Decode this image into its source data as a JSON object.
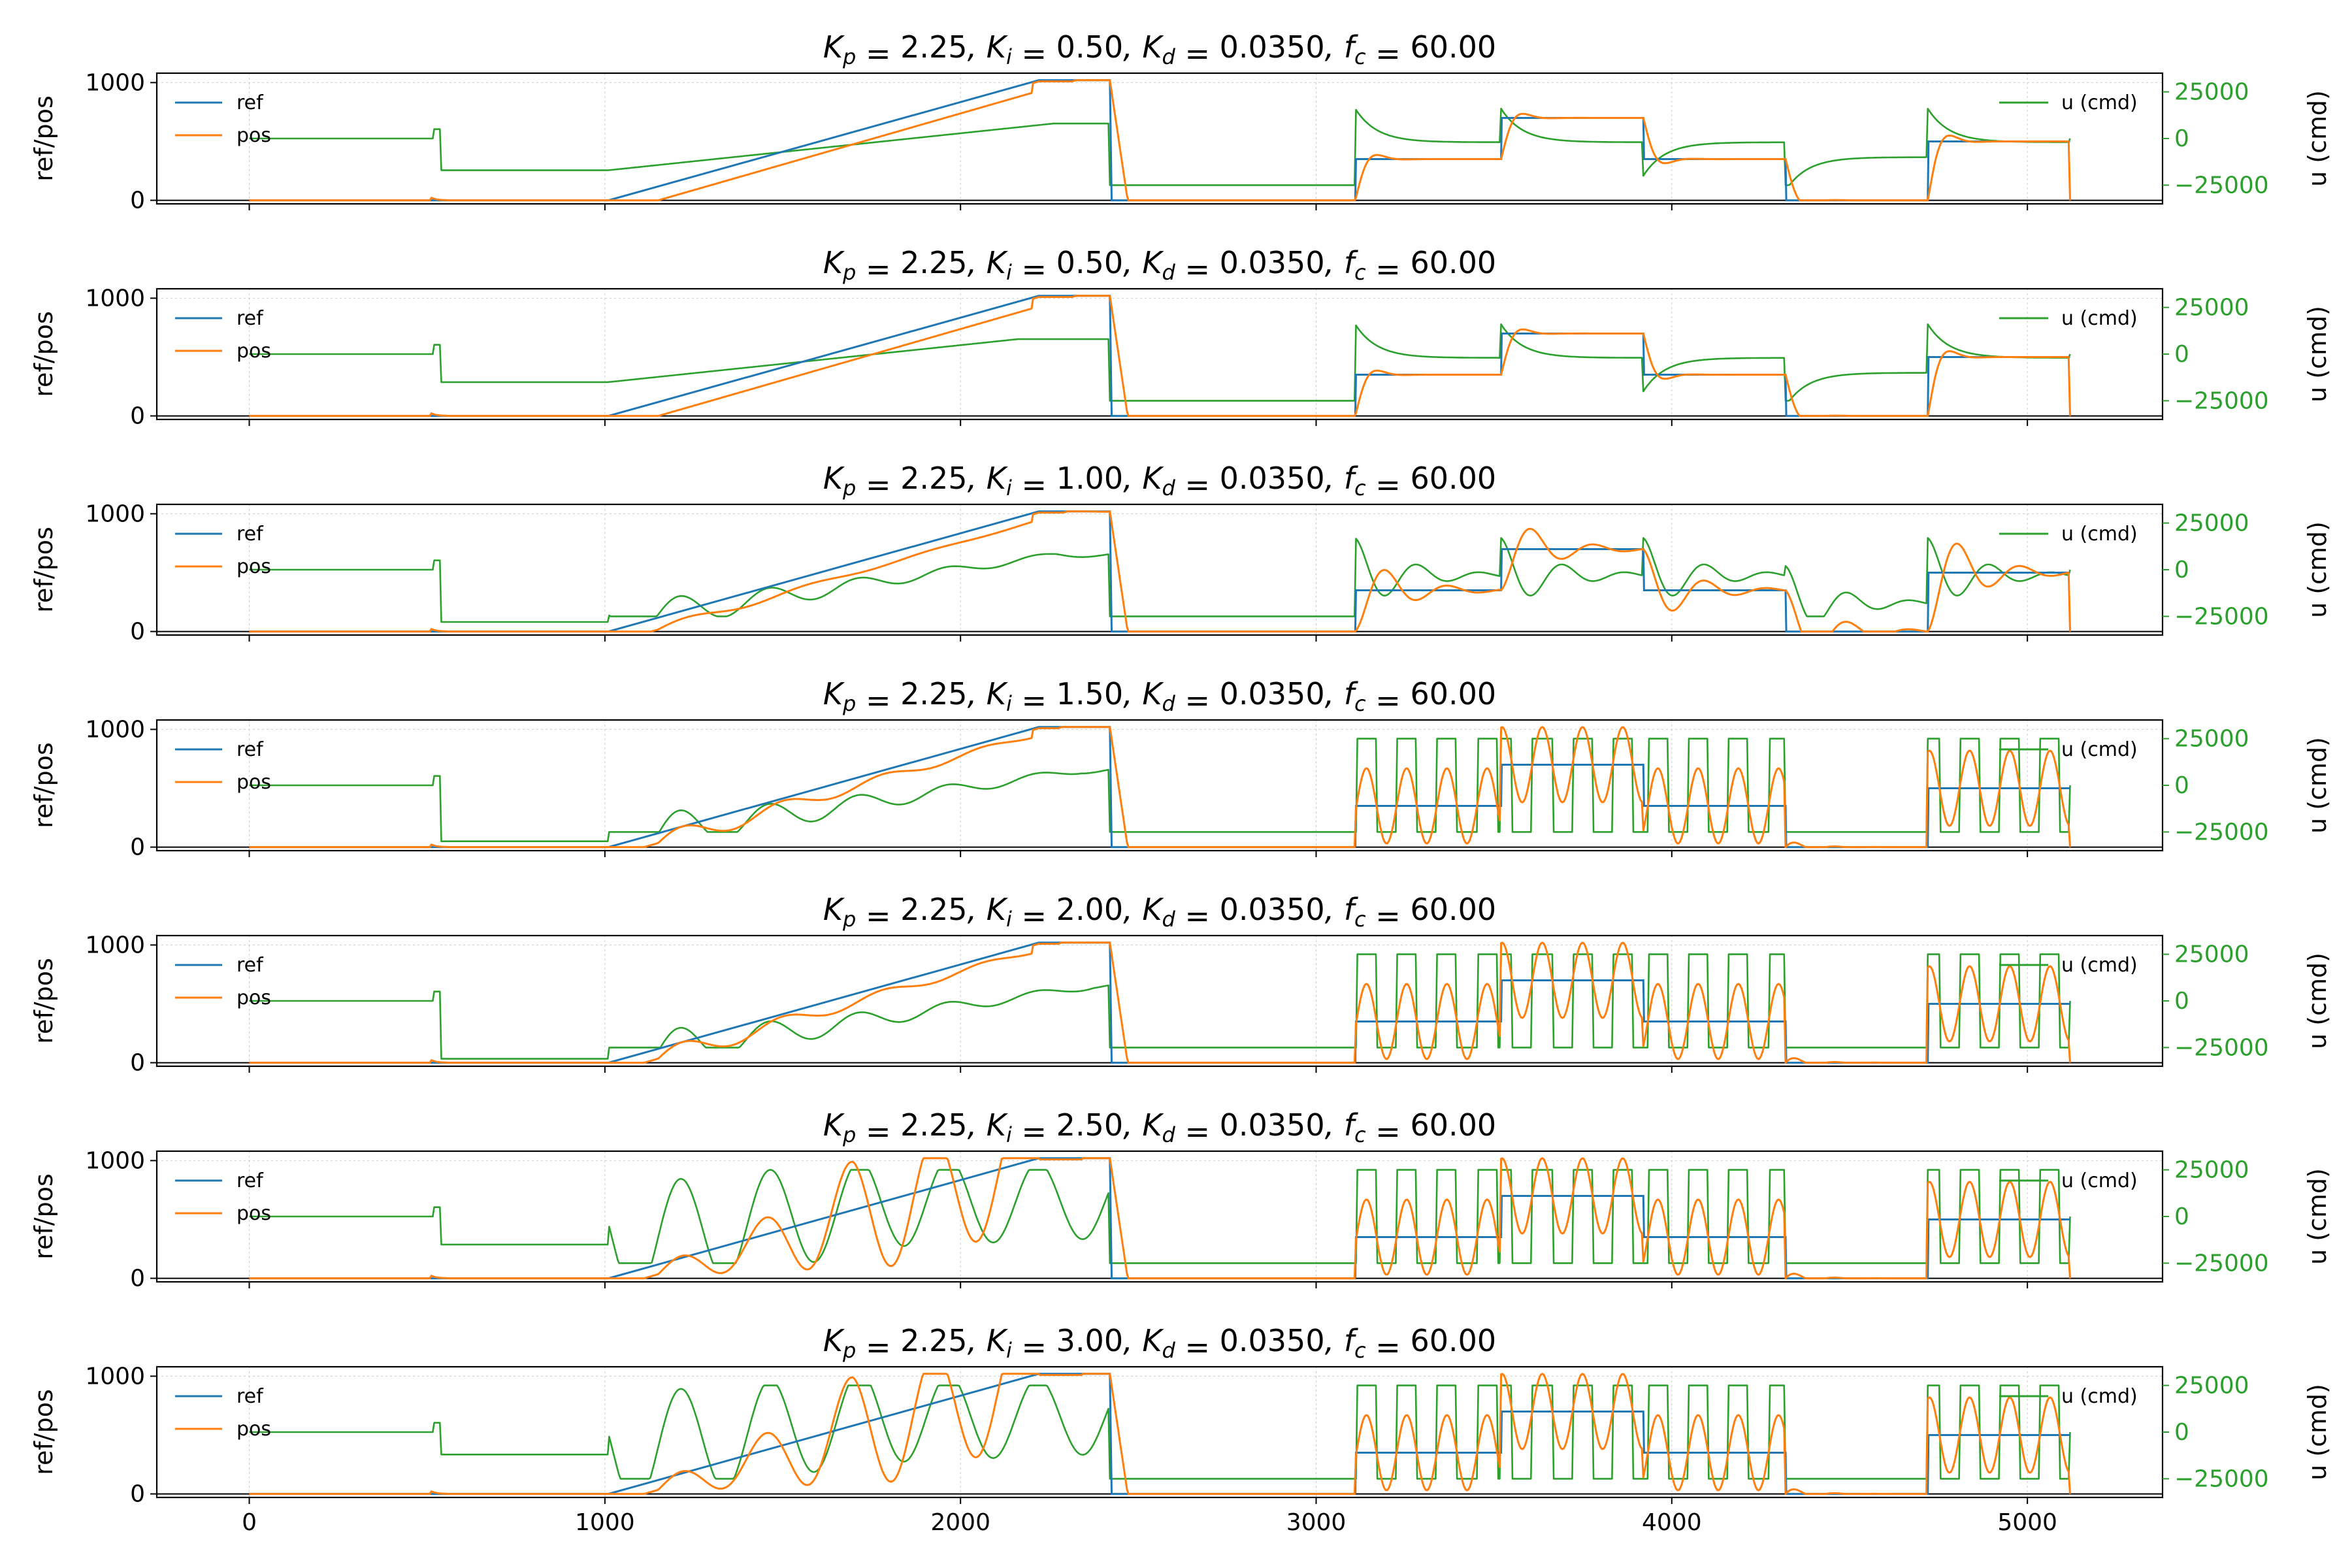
{
  "colors": {
    "ref": "#1f77b4",
    "pos": "#ff7f0e",
    "u": "#2ca02c",
    "grid": "#cccccc",
    "axis": "#000000"
  },
  "chart_data": {
    "type": "line",
    "xlim": [
      -260,
      5380
    ],
    "x_ticks": [
      0,
      1000,
      2000,
      3000,
      4000,
      5000
    ],
    "x_tick_labels": [
      "0",
      "1000",
      "2000",
      "3000",
      "4000",
      "5000"
    ],
    "ylim_left": [
      -30,
      1080
    ],
    "y_left_ticks": [
      0,
      1000
    ],
    "y_left_tick_labels": [
      "0",
      "1000"
    ],
    "ylim_right": [
      -35000,
      35000
    ],
    "y_right_ticks": [
      -25000,
      0,
      25000
    ],
    "y_right_tick_labels": [
      "−25000",
      "0",
      "25000"
    ],
    "ylabel_left": "ref/pos",
    "ylabel_right": "u (cmd)",
    "legend_left": [
      "ref",
      "pos"
    ],
    "legend_right": [
      "u (cmd)"
    ],
    "grid": true,
    "reference": {
      "x": [
        0,
        1010,
        2220,
        2420,
        2425,
        3110,
        3112,
        3520,
        3522,
        3920,
        3922,
        4320,
        4322,
        4720,
        4722,
        5120
      ],
      "y": [
        0,
        0,
        1020,
        1020,
        0,
        0,
        350,
        350,
        700,
        700,
        350,
        350,
        0,
        0,
        500,
        500
      ]
    },
    "panels": [
      {
        "title": "K_p = 2.25, K_i = 0.50, K_d = 0.0350, f_c = 60.00",
        "Kp": "2.25",
        "Ki": "0.50",
        "Kd": "0.0350",
        "fc": "60.00",
        "behavior": "stable",
        "u_idle": -17000
      },
      {
        "title": "K_p = 2.25, K_i = 0.50, K_d = 0.0350, f_c = 60.00",
        "Kp": "2.25",
        "Ki": "0.50",
        "Kd": "0.0350",
        "fc": "60.00",
        "behavior": "stable",
        "u_idle": -15000
      },
      {
        "title": "K_p = 2.25, K_i = 1.00, K_d = 0.0350, f_c = 60.00",
        "Kp": "2.25",
        "Ki": "1.00",
        "Kd": "0.0350",
        "fc": "60.00",
        "behavior": "damped",
        "u_idle": -28000
      },
      {
        "title": "K_p = 2.25, K_i = 1.50, K_d = 0.0350, f_c = 60.00",
        "Kp": "2.25",
        "Ki": "1.50",
        "Kd": "0.0350",
        "fc": "60.00",
        "behavior": "oscillating",
        "u_idle": -30000
      },
      {
        "title": "K_p = 2.25, K_i = 2.00, K_d = 0.0350, f_c = 60.00",
        "Kp": "2.25",
        "Ki": "2.00",
        "Kd": "0.0350",
        "fc": "60.00",
        "behavior": "oscillating",
        "u_idle": -31000
      },
      {
        "title": "K_p = 2.25, K_i = 2.50, K_d = 0.0350, f_c = 60.00",
        "Kp": "2.25",
        "Ki": "2.50",
        "Kd": "0.0350",
        "fc": "60.00",
        "behavior": "unstable",
        "u_idle": -15000
      },
      {
        "title": "K_p = 2.25, K_i = 3.00, K_d = 0.0350, f_c = 60.00",
        "Kp": "2.25",
        "Ki": "3.00",
        "Kd": "0.0350",
        "fc": "60.00",
        "behavior": "unstable",
        "u_idle": -12000
      }
    ]
  }
}
